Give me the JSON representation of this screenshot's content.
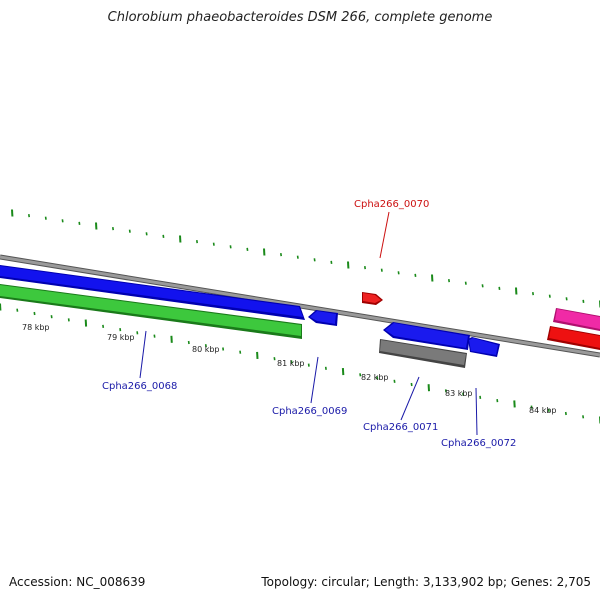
{
  "title": "Chlorobium phaeobacteroides DSM 266, complete genome",
  "footer": {
    "accession": "Accession: NC_008639",
    "info": "Topology: circular; Length: 3,133,902 bp; Genes: 2,705"
  },
  "colors": {
    "backbone": "#8a8a8a",
    "gene_blue": "#0a0ae6",
    "gene_green": "#33c233",
    "gene_red": "#ee1111",
    "gene_magenta": "#ee1f9a",
    "gene_gray": "#6f6f6f",
    "tick_green": "#1a8a1a",
    "label_blue": "#1a1aa8",
    "label_red": "#cc1111"
  },
  "kbp_labels": [
    "78 kbp",
    "79 kbp",
    "80 kbp",
    "81 kbp",
    "82 kbp",
    "83 kbp",
    "84 kbp"
  ],
  "gene_labels": {
    "g0068": "Cpha266_0068",
    "g0069": "Cpha266_0069",
    "g0070": "Cpha266_0070",
    "g0071": "Cpha266_0071",
    "g0072": "Cpha266_0072"
  }
}
